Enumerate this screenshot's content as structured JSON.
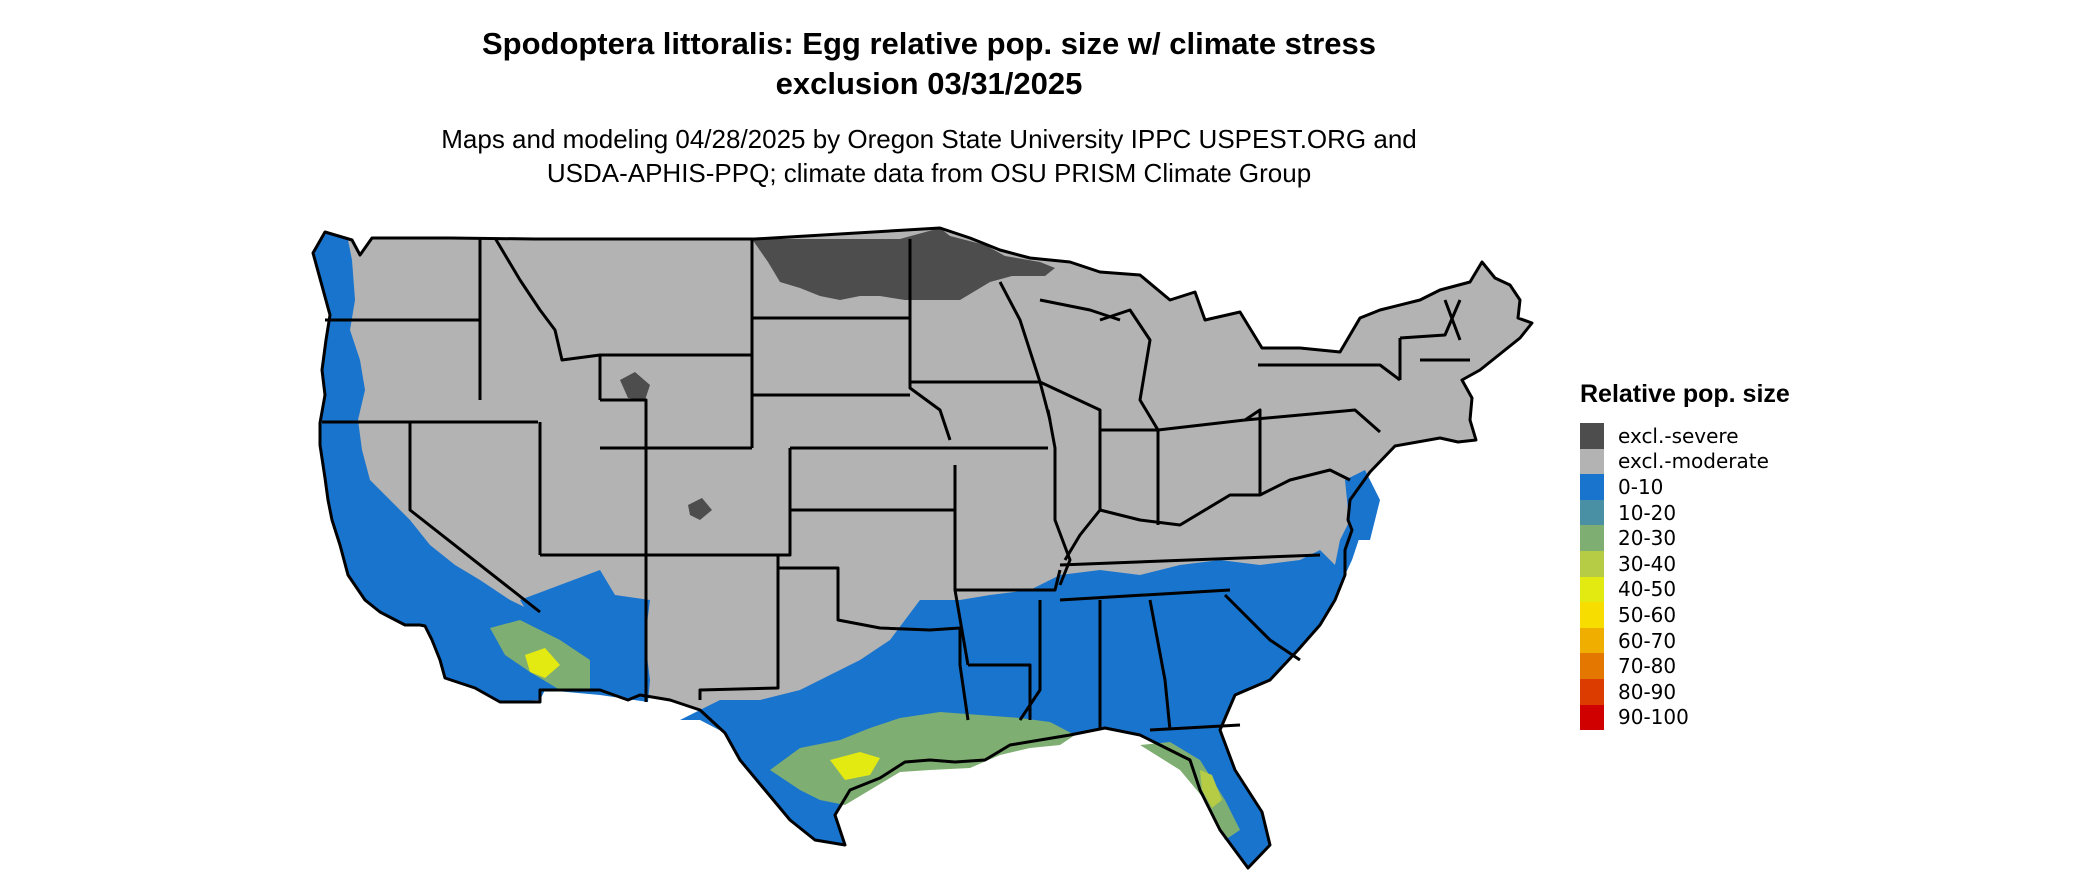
{
  "header": {
    "title_line1": "Spodoptera littoralis: Egg relative pop. size w/ climate stress",
    "title_line2": "exclusion 03/31/2025",
    "subtitle_line1": "Maps and modeling 04/28/2025 by Oregon State University IPPC USPEST.ORG and",
    "subtitle_line2": "USDA-APHIS-PPQ; climate data from OSU PRISM Climate Group"
  },
  "legend": {
    "title": "Relative pop. size",
    "items": [
      {
        "label": "excl.-severe",
        "color": "#4d4d4d"
      },
      {
        "label": "excl.-moderate",
        "color": "#b3b3b3"
      },
      {
        "label": "0-10",
        "color": "#1874cd"
      },
      {
        "label": "10-20",
        "color": "#4a90a4"
      },
      {
        "label": "20-30",
        "color": "#7fae72"
      },
      {
        "label": "30-40",
        "color": "#b5cc44"
      },
      {
        "label": "40-50",
        "color": "#e3ea12"
      },
      {
        "label": "50-60",
        "color": "#f8de00"
      },
      {
        "label": "60-70",
        "color": "#f0ae00"
      },
      {
        "label": "70-80",
        "color": "#e47700"
      },
      {
        "label": "80-90",
        "color": "#dc3c00"
      },
      {
        "label": "90-100",
        "color": "#d00000"
      }
    ]
  },
  "map": {
    "region": "contiguous-united-states",
    "colors": {
      "excluded_severe": "#4d4d4d",
      "excluded_moderate": "#b3b3b3",
      "low": "#1874cd",
      "mid": "#7fae72",
      "high": "#e3ea12",
      "border": "#000000"
    }
  }
}
